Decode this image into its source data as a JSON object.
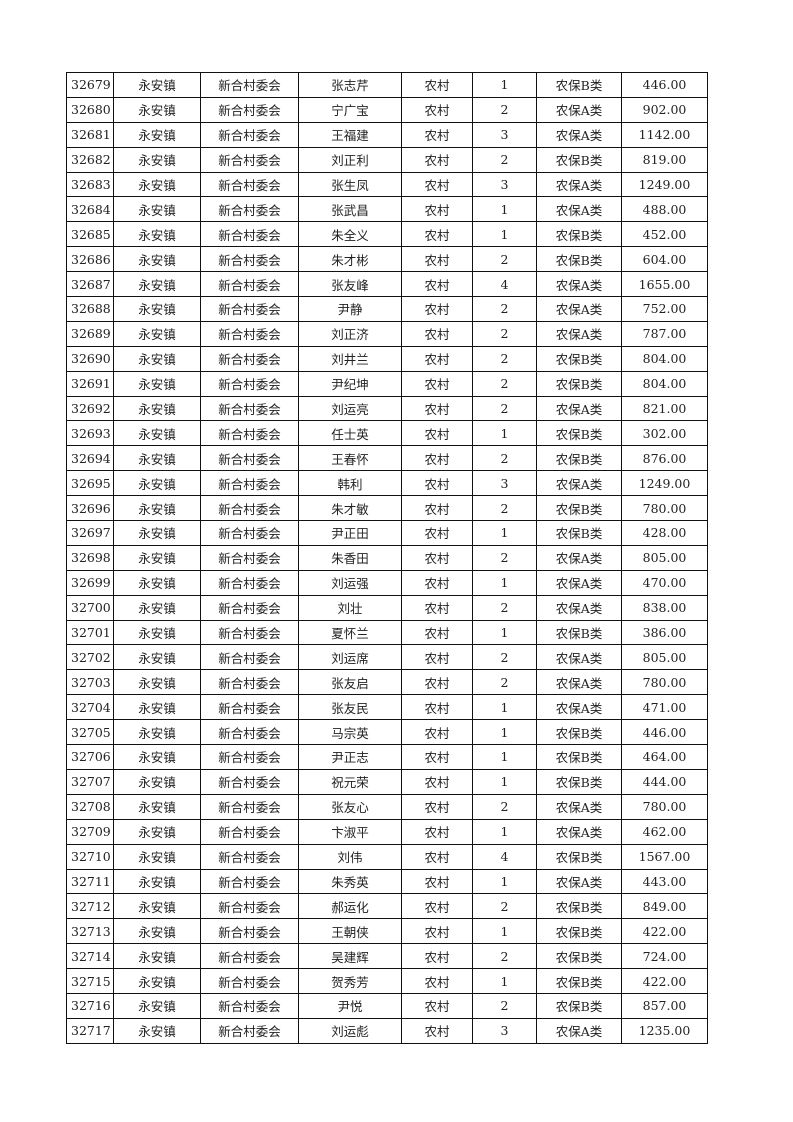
{
  "rows": [
    [
      "32679",
      "永安镇",
      "新合村委会",
      "张志芹",
      "农村",
      "1",
      "农保B类",
      "446.00"
    ],
    [
      "32680",
      "永安镇",
      "新合村委会",
      "宁广宝",
      "农村",
      "2",
      "农保A类",
      "902.00"
    ],
    [
      "32681",
      "永安镇",
      "新合村委会",
      "王福建",
      "农村",
      "3",
      "农保A类",
      "1142.00"
    ],
    [
      "32682",
      "永安镇",
      "新合村委会",
      "刘正利",
      "农村",
      "2",
      "农保B类",
      "819.00"
    ],
    [
      "32683",
      "永安镇",
      "新合村委会",
      "张生凤",
      "农村",
      "3",
      "农保A类",
      "1249.00"
    ],
    [
      "32684",
      "永安镇",
      "新合村委会",
      "张武昌",
      "农村",
      "1",
      "农保A类",
      "488.00"
    ],
    [
      "32685",
      "永安镇",
      "新合村委会",
      "朱全义",
      "农村",
      "1",
      "农保B类",
      "452.00"
    ],
    [
      "32686",
      "永安镇",
      "新合村委会",
      "朱才彬",
      "农村",
      "2",
      "农保B类",
      "604.00"
    ],
    [
      "32687",
      "永安镇",
      "新合村委会",
      "张友峰",
      "农村",
      "4",
      "农保A类",
      "1655.00"
    ],
    [
      "32688",
      "永安镇",
      "新合村委会",
      "尹静",
      "农村",
      "2",
      "农保A类",
      "752.00"
    ],
    [
      "32689",
      "永安镇",
      "新合村委会",
      "刘正济",
      "农村",
      "2",
      "农保A类",
      "787.00"
    ],
    [
      "32690",
      "永安镇",
      "新合村委会",
      "刘井兰",
      "农村",
      "2",
      "农保B类",
      "804.00"
    ],
    [
      "32691",
      "永安镇",
      "新合村委会",
      "尹纪坤",
      "农村",
      "2",
      "农保B类",
      "804.00"
    ],
    [
      "32692",
      "永安镇",
      "新合村委会",
      "刘运亮",
      "农村",
      "2",
      "农保A类",
      "821.00"
    ],
    [
      "32693",
      "永安镇",
      "新合村委会",
      "任士英",
      "农村",
      "1",
      "农保B类",
      "302.00"
    ],
    [
      "32694",
      "永安镇",
      "新合村委会",
      "王春怀",
      "农村",
      "2",
      "农保B类",
      "876.00"
    ],
    [
      "32695",
      "永安镇",
      "新合村委会",
      "韩利",
      "农村",
      "3",
      "农保A类",
      "1249.00"
    ],
    [
      "32696",
      "永安镇",
      "新合村委会",
      "朱才敏",
      "农村",
      "2",
      "农保B类",
      "780.00"
    ],
    [
      "32697",
      "永安镇",
      "新合村委会",
      "尹正田",
      "农村",
      "1",
      "农保B类",
      "428.00"
    ],
    [
      "32698",
      "永安镇",
      "新合村委会",
      "朱香田",
      "农村",
      "2",
      "农保A类",
      "805.00"
    ],
    [
      "32699",
      "永安镇",
      "新合村委会",
      "刘运强",
      "农村",
      "1",
      "农保A类",
      "470.00"
    ],
    [
      "32700",
      "永安镇",
      "新合村委会",
      "刘壮",
      "农村",
      "2",
      "农保A类",
      "838.00"
    ],
    [
      "32701",
      "永安镇",
      "新合村委会",
      "夏怀兰",
      "农村",
      "1",
      "农保B类",
      "386.00"
    ],
    [
      "32702",
      "永安镇",
      "新合村委会",
      "刘运席",
      "农村",
      "2",
      "农保A类",
      "805.00"
    ],
    [
      "32703",
      "永安镇",
      "新合村委会",
      "张友启",
      "农村",
      "2",
      "农保A类",
      "780.00"
    ],
    [
      "32704",
      "永安镇",
      "新合村委会",
      "张友民",
      "农村",
      "1",
      "农保A类",
      "471.00"
    ],
    [
      "32705",
      "永安镇",
      "新合村委会",
      "马宗英",
      "农村",
      "1",
      "农保B类",
      "446.00"
    ],
    [
      "32706",
      "永安镇",
      "新合村委会",
      "尹正志",
      "农村",
      "1",
      "农保B类",
      "464.00"
    ],
    [
      "32707",
      "永安镇",
      "新合村委会",
      "祝元荣",
      "农村",
      "1",
      "农保B类",
      "444.00"
    ],
    [
      "32708",
      "永安镇",
      "新合村委会",
      "张友心",
      "农村",
      "2",
      "农保A类",
      "780.00"
    ],
    [
      "32709",
      "永安镇",
      "新合村委会",
      "卞淑平",
      "农村",
      "1",
      "农保A类",
      "462.00"
    ],
    [
      "32710",
      "永安镇",
      "新合村委会",
      "刘伟",
      "农村",
      "4",
      "农保B类",
      "1567.00"
    ],
    [
      "32711",
      "永安镇",
      "新合村委会",
      "朱秀英",
      "农村",
      "1",
      "农保A类",
      "443.00"
    ],
    [
      "32712",
      "永安镇",
      "新合村委会",
      "郝运化",
      "农村",
      "2",
      "农保B类",
      "849.00"
    ],
    [
      "32713",
      "永安镇",
      "新合村委会",
      "王朝侠",
      "农村",
      "1",
      "农保B类",
      "422.00"
    ],
    [
      "32714",
      "永安镇",
      "新合村委会",
      "吴建辉",
      "农村",
      "2",
      "农保B类",
      "724.00"
    ],
    [
      "32715",
      "永安镇",
      "新合村委会",
      "贺秀芳",
      "农村",
      "1",
      "农保B类",
      "422.00"
    ],
    [
      "32716",
      "永安镇",
      "新合村委会",
      "尹悦",
      "农村",
      "2",
      "农保B类",
      "857.00"
    ],
    [
      "32717",
      "永安镇",
      "新合村委会",
      "刘运彪",
      "农村",
      "3",
      "农保A类",
      "1235.00"
    ]
  ]
}
